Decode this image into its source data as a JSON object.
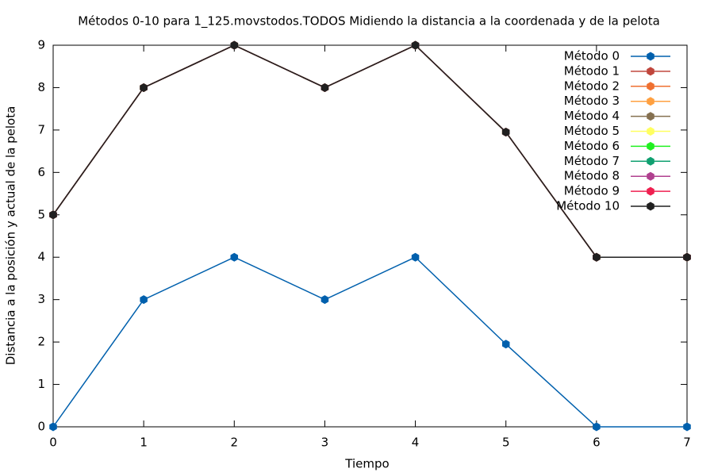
{
  "chart_data": {
    "type": "line",
    "title": "Métodos 0-10 para 1_125.movstodos.TODOS Midiendo la distancia a la coordenada y de la pelota",
    "x_label": "Tiempo",
    "y_label": "Distancia a la posición y actual de la pelota",
    "x": [
      0,
      1,
      2,
      3,
      4,
      5,
      6,
      7
    ],
    "xlim": [
      0,
      7
    ],
    "xticks": [
      0,
      1,
      2,
      3,
      4,
      5,
      6,
      7
    ],
    "ylim": [
      0,
      9
    ],
    "yticks": [
      0,
      1,
      2,
      3,
      4,
      5,
      6,
      7,
      8,
      9
    ],
    "legend": "top right",
    "series": [
      {
        "name": "Método 0",
        "color": "#0060ad",
        "values": [
          0,
          3,
          4,
          3,
          4,
          1.95,
          0,
          0
        ]
      },
      {
        "name": "Método 1",
        "color": "#c0463c",
        "values": [
          5,
          8,
          9,
          8,
          9,
          6.95,
          4,
          4
        ]
      },
      {
        "name": "Método 2",
        "color": "#ef7030",
        "values": [
          5,
          8,
          9,
          8,
          9,
          6.95,
          4,
          4
        ]
      },
      {
        "name": "Método 3",
        "color": "#ffa040",
        "values": [
          5,
          8,
          9,
          8,
          9,
          6.95,
          4,
          4
        ]
      },
      {
        "name": "Método 4",
        "color": "#857050",
        "values": [
          5,
          8,
          9,
          8,
          9,
          6.95,
          4,
          4
        ]
      },
      {
        "name": "Método 5",
        "color": "#ffff60",
        "values": [
          5,
          8,
          9,
          8,
          9,
          6.95,
          4,
          4
        ]
      },
      {
        "name": "Método 6",
        "color": "#20f020",
        "values": [
          5,
          8,
          9,
          8,
          9,
          6.95,
          4,
          4
        ]
      },
      {
        "name": "Método 7",
        "color": "#10a070",
        "values": [
          5,
          8,
          9,
          8,
          9,
          6.95,
          4,
          4
        ]
      },
      {
        "name": "Método 8",
        "color": "#b0408f",
        "values": [
          5,
          8,
          9,
          8,
          9,
          6.95,
          4,
          4
        ]
      },
      {
        "name": "Método 9",
        "color": "#ef2050",
        "values": [
          5,
          8,
          9,
          8,
          9,
          6.95,
          4,
          4
        ]
      },
      {
        "name": "Método 10",
        "color": "#202020",
        "values": [
          5,
          8,
          9,
          8,
          9,
          6.95,
          4,
          4
        ]
      }
    ]
  }
}
